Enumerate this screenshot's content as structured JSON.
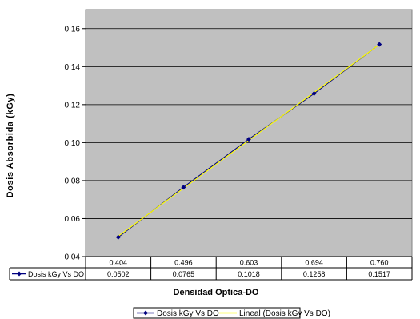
{
  "chart_data": {
    "type": "line",
    "xlabel": "Densidad Optica-DO",
    "ylabel": "Dosis Absorbida (kGy)",
    "x": [
      "0.404",
      "0.496",
      "0.603",
      "0.694",
      "0.760"
    ],
    "series": [
      {
        "name": "Dosis kGy Vs DO",
        "values": [
          0.0502,
          0.0765,
          0.1018,
          0.1258,
          0.1517
        ],
        "labels": [
          "0.0502",
          "0.0765",
          "0.1018",
          "0.1258",
          "0.1517"
        ],
        "color": "#000080",
        "marker": "diamond"
      },
      {
        "name": "Lineal (Dosis kGy Vs DO)",
        "trendline": true,
        "color": "#ffff00"
      }
    ],
    "ylim": [
      0.04,
      0.17
    ],
    "yticks": [
      "0.04",
      "0.06",
      "0.08",
      "0.10",
      "0.12",
      "0.14",
      "0.16"
    ],
    "grid": true,
    "data_table": true,
    "legend": "bottom-center",
    "plot_background": "#c0c0c0"
  }
}
